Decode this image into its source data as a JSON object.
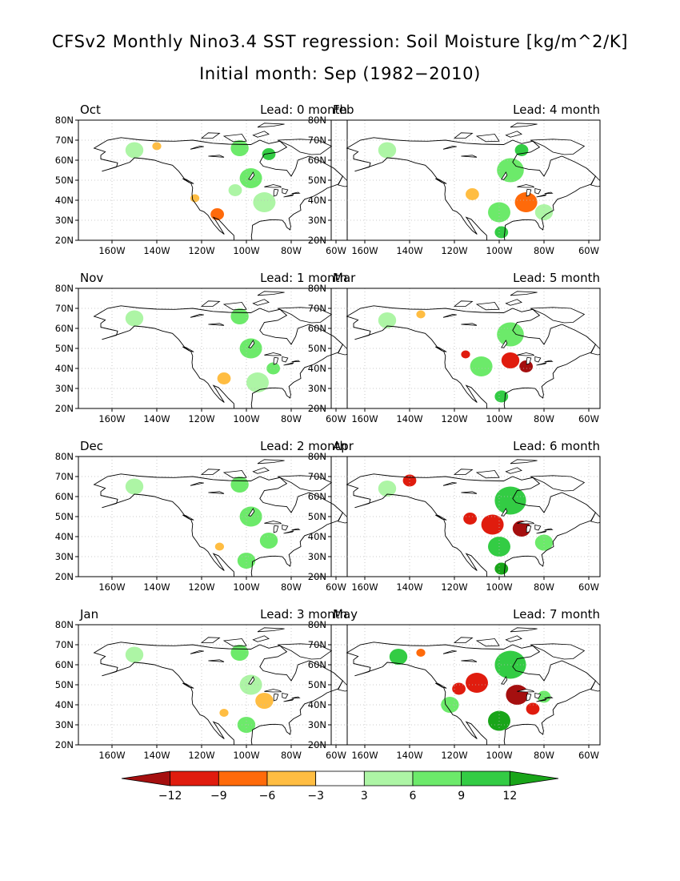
{
  "figure": {
    "title_line1": "CFSv2 Monthly Nino3.4 SST regression: Soil Moisture [kg/m^2/K]",
    "title_line2": "Initial month: Sep (1982−2010)"
  },
  "chart_data": {
    "type": "heatmap",
    "map_region": "North America",
    "lon_ticks": [
      "160W",
      "140W",
      "120W",
      "100W",
      "80W",
      "60W"
    ],
    "lat_ticks": [
      "20N",
      "30N",
      "40N",
      "50N",
      "60N",
      "70N",
      "80N"
    ],
    "lon_range": [
      -175,
      -55
    ],
    "lat_range": [
      20,
      80
    ],
    "grid": true,
    "panels": [
      {
        "month": "Oct",
        "lead": "Lead: 0 month",
        "features": [
          {
            "lon": -113,
            "lat": 33,
            "value": -6,
            "r": 3
          },
          {
            "lon": -123,
            "lat": 41,
            "value": -3,
            "r": 2
          },
          {
            "lon": -140,
            "lat": 67,
            "value": -3,
            "r": 2
          },
          {
            "lon": -98,
            "lat": 51,
            "value": 6,
            "r": 5
          },
          {
            "lon": -103,
            "lat": 66,
            "value": 6,
            "r": 4
          },
          {
            "lon": -90,
            "lat": 63,
            "value": 9,
            "r": 3
          },
          {
            "lon": -92,
            "lat": 39,
            "value": 3,
            "r": 5
          },
          {
            "lon": -150,
            "lat": 65,
            "value": 3,
            "r": 4
          },
          {
            "lon": -105,
            "lat": 45,
            "value": 3,
            "r": 3
          }
        ]
      },
      {
        "month": "Feb",
        "lead": "Lead: 4 month",
        "features": [
          {
            "lon": -88,
            "lat": 39,
            "value": -6,
            "r": 5
          },
          {
            "lon": -112,
            "lat": 43,
            "value": -3,
            "r": 3
          },
          {
            "lon": -100,
            "lat": 34,
            "value": 6,
            "r": 5
          },
          {
            "lon": -99,
            "lat": 24,
            "value": 9,
            "r": 3
          },
          {
            "lon": -95,
            "lat": 55,
            "value": 6,
            "r": 6
          },
          {
            "lon": -90,
            "lat": 65,
            "value": 9,
            "r": 3
          },
          {
            "lon": -150,
            "lat": 65,
            "value": 3,
            "r": 4
          },
          {
            "lon": -80,
            "lat": 34,
            "value": 3,
            "r": 4
          }
        ]
      },
      {
        "month": "Nov",
        "lead": "Lead: 1 month",
        "features": [
          {
            "lon": -110,
            "lat": 35,
            "value": -3,
            "r": 3
          },
          {
            "lon": -98,
            "lat": 50,
            "value": 6,
            "r": 5
          },
          {
            "lon": -103,
            "lat": 66,
            "value": 6,
            "r": 4
          },
          {
            "lon": -88,
            "lat": 40,
            "value": 6,
            "r": 3
          },
          {
            "lon": -150,
            "lat": 65,
            "value": 3,
            "r": 4
          },
          {
            "lon": -95,
            "lat": 33,
            "value": 3,
            "r": 5
          }
        ]
      },
      {
        "month": "Mar",
        "lead": "Lead: 5 month",
        "features": [
          {
            "lon": -88,
            "lat": 41,
            "value": -12,
            "r": 3
          },
          {
            "lon": -95,
            "lat": 44,
            "value": -9,
            "r": 4
          },
          {
            "lon": -115,
            "lat": 47,
            "value": -9,
            "r": 2
          },
          {
            "lon": -108,
            "lat": 41,
            "value": 6,
            "r": 5
          },
          {
            "lon": -99,
            "lat": 26,
            "value": 9,
            "r": 3
          },
          {
            "lon": -95,
            "lat": 57,
            "value": 6,
            "r": 6
          },
          {
            "lon": -135,
            "lat": 67,
            "value": -3,
            "r": 2
          },
          {
            "lon": -150,
            "lat": 64,
            "value": 3,
            "r": 4
          }
        ]
      },
      {
        "month": "Dec",
        "lead": "Lead: 2 month",
        "features": [
          {
            "lon": -112,
            "lat": 35,
            "value": -3,
            "r": 2
          },
          {
            "lon": -100,
            "lat": 28,
            "value": 6,
            "r": 4
          },
          {
            "lon": -90,
            "lat": 38,
            "value": 6,
            "r": 4
          },
          {
            "lon": -98,
            "lat": 50,
            "value": 6,
            "r": 5
          },
          {
            "lon": -103,
            "lat": 66,
            "value": 6,
            "r": 4
          },
          {
            "lon": -150,
            "lat": 65,
            "value": 3,
            "r": 4
          }
        ]
      },
      {
        "month": "Apr",
        "lead": "Lead: 6 month",
        "features": [
          {
            "lon": -90,
            "lat": 44,
            "value": -12,
            "r": 4
          },
          {
            "lon": -103,
            "lat": 46,
            "value": -9,
            "r": 5
          },
          {
            "lon": -113,
            "lat": 49,
            "value": -9,
            "r": 3
          },
          {
            "lon": -140,
            "lat": 68,
            "value": -9,
            "r": 3
          },
          {
            "lon": -100,
            "lat": 35,
            "value": 9,
            "r": 5
          },
          {
            "lon": -99,
            "lat": 24,
            "value": 12,
            "r": 3
          },
          {
            "lon": -95,
            "lat": 58,
            "value": 9,
            "r": 7
          },
          {
            "lon": -80,
            "lat": 37,
            "value": 6,
            "r": 4
          },
          {
            "lon": -150,
            "lat": 64,
            "value": 3,
            "r": 4
          }
        ]
      },
      {
        "month": "Jan",
        "lead": "Lead: 3 month",
        "features": [
          {
            "lon": -92,
            "lat": 42,
            "value": -3,
            "r": 4
          },
          {
            "lon": -110,
            "lat": 36,
            "value": -3,
            "r": 2
          },
          {
            "lon": -100,
            "lat": 30,
            "value": 6,
            "r": 4
          },
          {
            "lon": -98,
            "lat": 50,
            "value": 3,
            "r": 5
          },
          {
            "lon": -103,
            "lat": 66,
            "value": 6,
            "r": 4
          },
          {
            "lon": -150,
            "lat": 65,
            "value": 3,
            "r": 4
          }
        ]
      },
      {
        "month": "May",
        "lead": "Lead: 7 month",
        "features": [
          {
            "lon": -92,
            "lat": 45,
            "value": -12,
            "r": 5
          },
          {
            "lon": -110,
            "lat": 51,
            "value": -9,
            "r": 5
          },
          {
            "lon": -118,
            "lat": 48,
            "value": -9,
            "r": 3
          },
          {
            "lon": -85,
            "lat": 38,
            "value": -9,
            "r": 3
          },
          {
            "lon": -135,
            "lat": 66,
            "value": -6,
            "r": 2
          },
          {
            "lon": -100,
            "lat": 32,
            "value": 12,
            "r": 5
          },
          {
            "lon": -95,
            "lat": 60,
            "value": 9,
            "r": 7
          },
          {
            "lon": -145,
            "lat": 64,
            "value": 9,
            "r": 4
          },
          {
            "lon": -80,
            "lat": 44,
            "value": 6,
            "r": 3
          },
          {
            "lon": -122,
            "lat": 40,
            "value": 6,
            "r": 4
          }
        ]
      }
    ],
    "colorbar": {
      "ticks": [
        "−12",
        "−9",
        "−6",
        "−3",
        "3",
        "6",
        "9",
        "12"
      ],
      "levels": [
        -12,
        -9,
        -6,
        -3,
        3,
        6,
        9,
        12
      ],
      "colors": [
        "#a50f0f",
        "#e01c0e",
        "#ff6a0a",
        "#ffbd42",
        "#ffffff",
        "#adf5a5",
        "#6cea6a",
        "#33cc44",
        "#19a519"
      ]
    }
  }
}
